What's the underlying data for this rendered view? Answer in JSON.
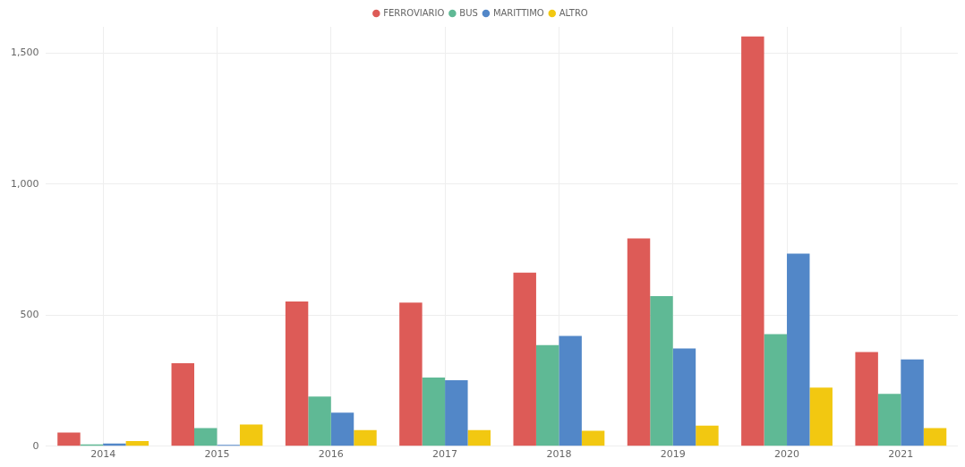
{
  "chart_data": {
    "type": "bar",
    "categories": [
      "2014",
      "2015",
      "2016",
      "2017",
      "2018",
      "2019",
      "2020",
      "2021"
    ],
    "series": [
      {
        "name": "FERROVIARIO",
        "color": "#dd5b57",
        "values": [
          52,
          317,
          552,
          548,
          662,
          793,
          1563,
          359
        ]
      },
      {
        "name": "BUS",
        "color": "#5fb995",
        "values": [
          7,
          69,
          190,
          262,
          386,
          573,
          428,
          200
        ]
      },
      {
        "name": "MARITTIMO",
        "color": "#5287c8",
        "values": [
          10,
          5,
          128,
          252,
          421,
          373,
          735,
          331
        ]
      },
      {
        "name": "ALTRO",
        "color": "#f2c811",
        "values": [
          20,
          83,
          62,
          62,
          59,
          79,
          224,
          69
        ]
      }
    ],
    "ylim": [
      0,
      1600
    ],
    "yticks": [
      0,
      {
        "value": 500,
        "label": "500"
      },
      {
        "value": 1000,
        "label": "1,000"
      },
      {
        "value": 1500,
        "label": "1,500"
      }
    ],
    "grid": true,
    "legend": "top"
  }
}
